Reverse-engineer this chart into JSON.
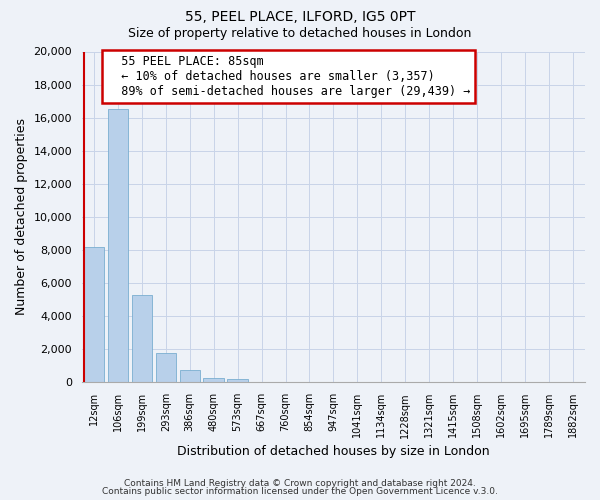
{
  "title": "55, PEEL PLACE, ILFORD, IG5 0PT",
  "subtitle": "Size of property relative to detached houses in London",
  "xlabel": "Distribution of detached houses by size in London",
  "ylabel": "Number of detached properties",
  "categories": [
    "12sqm",
    "106sqm",
    "199sqm",
    "293sqm",
    "386sqm",
    "480sqm",
    "573sqm",
    "667sqm",
    "760sqm",
    "854sqm",
    "947sqm",
    "1041sqm",
    "1134sqm",
    "1228sqm",
    "1321sqm",
    "1415sqm",
    "1508sqm",
    "1602sqm",
    "1695sqm",
    "1789sqm",
    "1882sqm"
  ],
  "values": [
    8200,
    16500,
    5300,
    1800,
    750,
    250,
    200,
    0,
    0,
    0,
    0,
    0,
    0,
    0,
    0,
    0,
    0,
    0,
    0,
    0,
    0
  ],
  "bar_color": "#b8d0ea",
  "bar_edge_color": "#7aaed0",
  "highlight_color": "#cc0000",
  "ylim": [
    0,
    20000
  ],
  "yticks": [
    0,
    2000,
    4000,
    6000,
    8000,
    10000,
    12000,
    14000,
    16000,
    18000,
    20000
  ],
  "annotation_title": "55 PEEL PLACE: 85sqm",
  "annotation_line1": "← 10% of detached houses are smaller (3,357)",
  "annotation_line2": "89% of semi-detached houses are larger (29,439) →",
  "annotation_box_color": "#ffffff",
  "annotation_border_color": "#cc0000",
  "footer1": "Contains HM Land Registry data © Crown copyright and database right 2024.",
  "footer2": "Contains public sector information licensed under the Open Government Licence v.3.0.",
  "grid_color": "#c8d4e8",
  "background_color": "#eef2f8"
}
